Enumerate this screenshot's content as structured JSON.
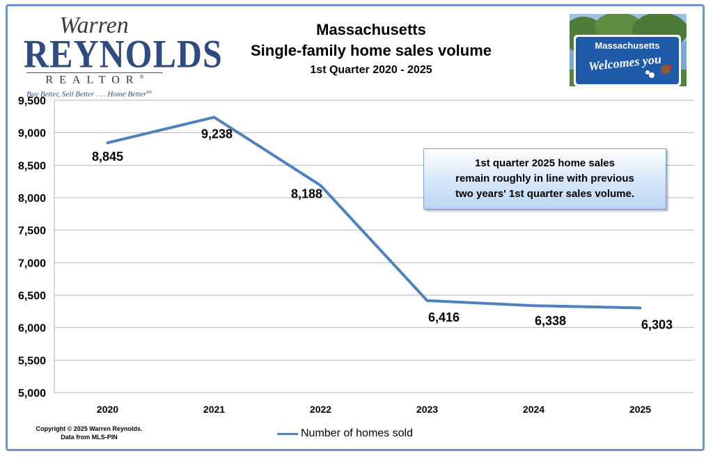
{
  "header": {
    "title_line1": "Massachusetts",
    "title_line2": "Single-family home sales volume",
    "title_line3": "1st Quarter 2020 - 2025"
  },
  "logo": {
    "name_top": "Warren",
    "name_main": "REYNOLDS",
    "subtitle": "REALTOR",
    "registered": "®",
    "tagline": "Buy Better, Sell Better . . . Home Better",
    "tagline_mark": "sm"
  },
  "sign": {
    "line1": "Massachusetts",
    "line2": "Welcomes you"
  },
  "annotation": {
    "text": "1st quarter 2025 home sales\nremain roughly in line with previous\ntwo years' 1st quarter sales volume."
  },
  "footer": {
    "copyright_line1": "Copyright © 2025 Warren Reynolds.",
    "copyright_line2": "Data from MLS-PIN"
  },
  "colors": {
    "series": "#4f81bd",
    "grid": "#b3b3b3",
    "border": "#6f95c6"
  },
  "chart_data": {
    "type": "line",
    "title": "Massachusetts Single-family home sales volume",
    "subtitle": "1st Quarter 2020 - 2025",
    "x": [
      "2020",
      "2021",
      "2022",
      "2023",
      "2024",
      "2025"
    ],
    "series": [
      {
        "name": "Number of homes sold",
        "values": [
          8845,
          9238,
          8188,
          6416,
          6338,
          6303
        ],
        "labels": [
          "8,845",
          "9,238",
          "8,188",
          "6,416",
          "6,338",
          "6,303"
        ]
      }
    ],
    "ylim": [
      5000,
      9500
    ],
    "yticks": [
      5000,
      5500,
      6000,
      6500,
      7000,
      7500,
      8000,
      8500,
      9000,
      9500
    ],
    "ytick_labels": [
      "5,000",
      "5,500",
      "6,000",
      "6,500",
      "7,000",
      "7,500",
      "8,000",
      "8,500",
      "9,000",
      "9,500"
    ],
    "grid": true,
    "legend": "bottom-center"
  }
}
